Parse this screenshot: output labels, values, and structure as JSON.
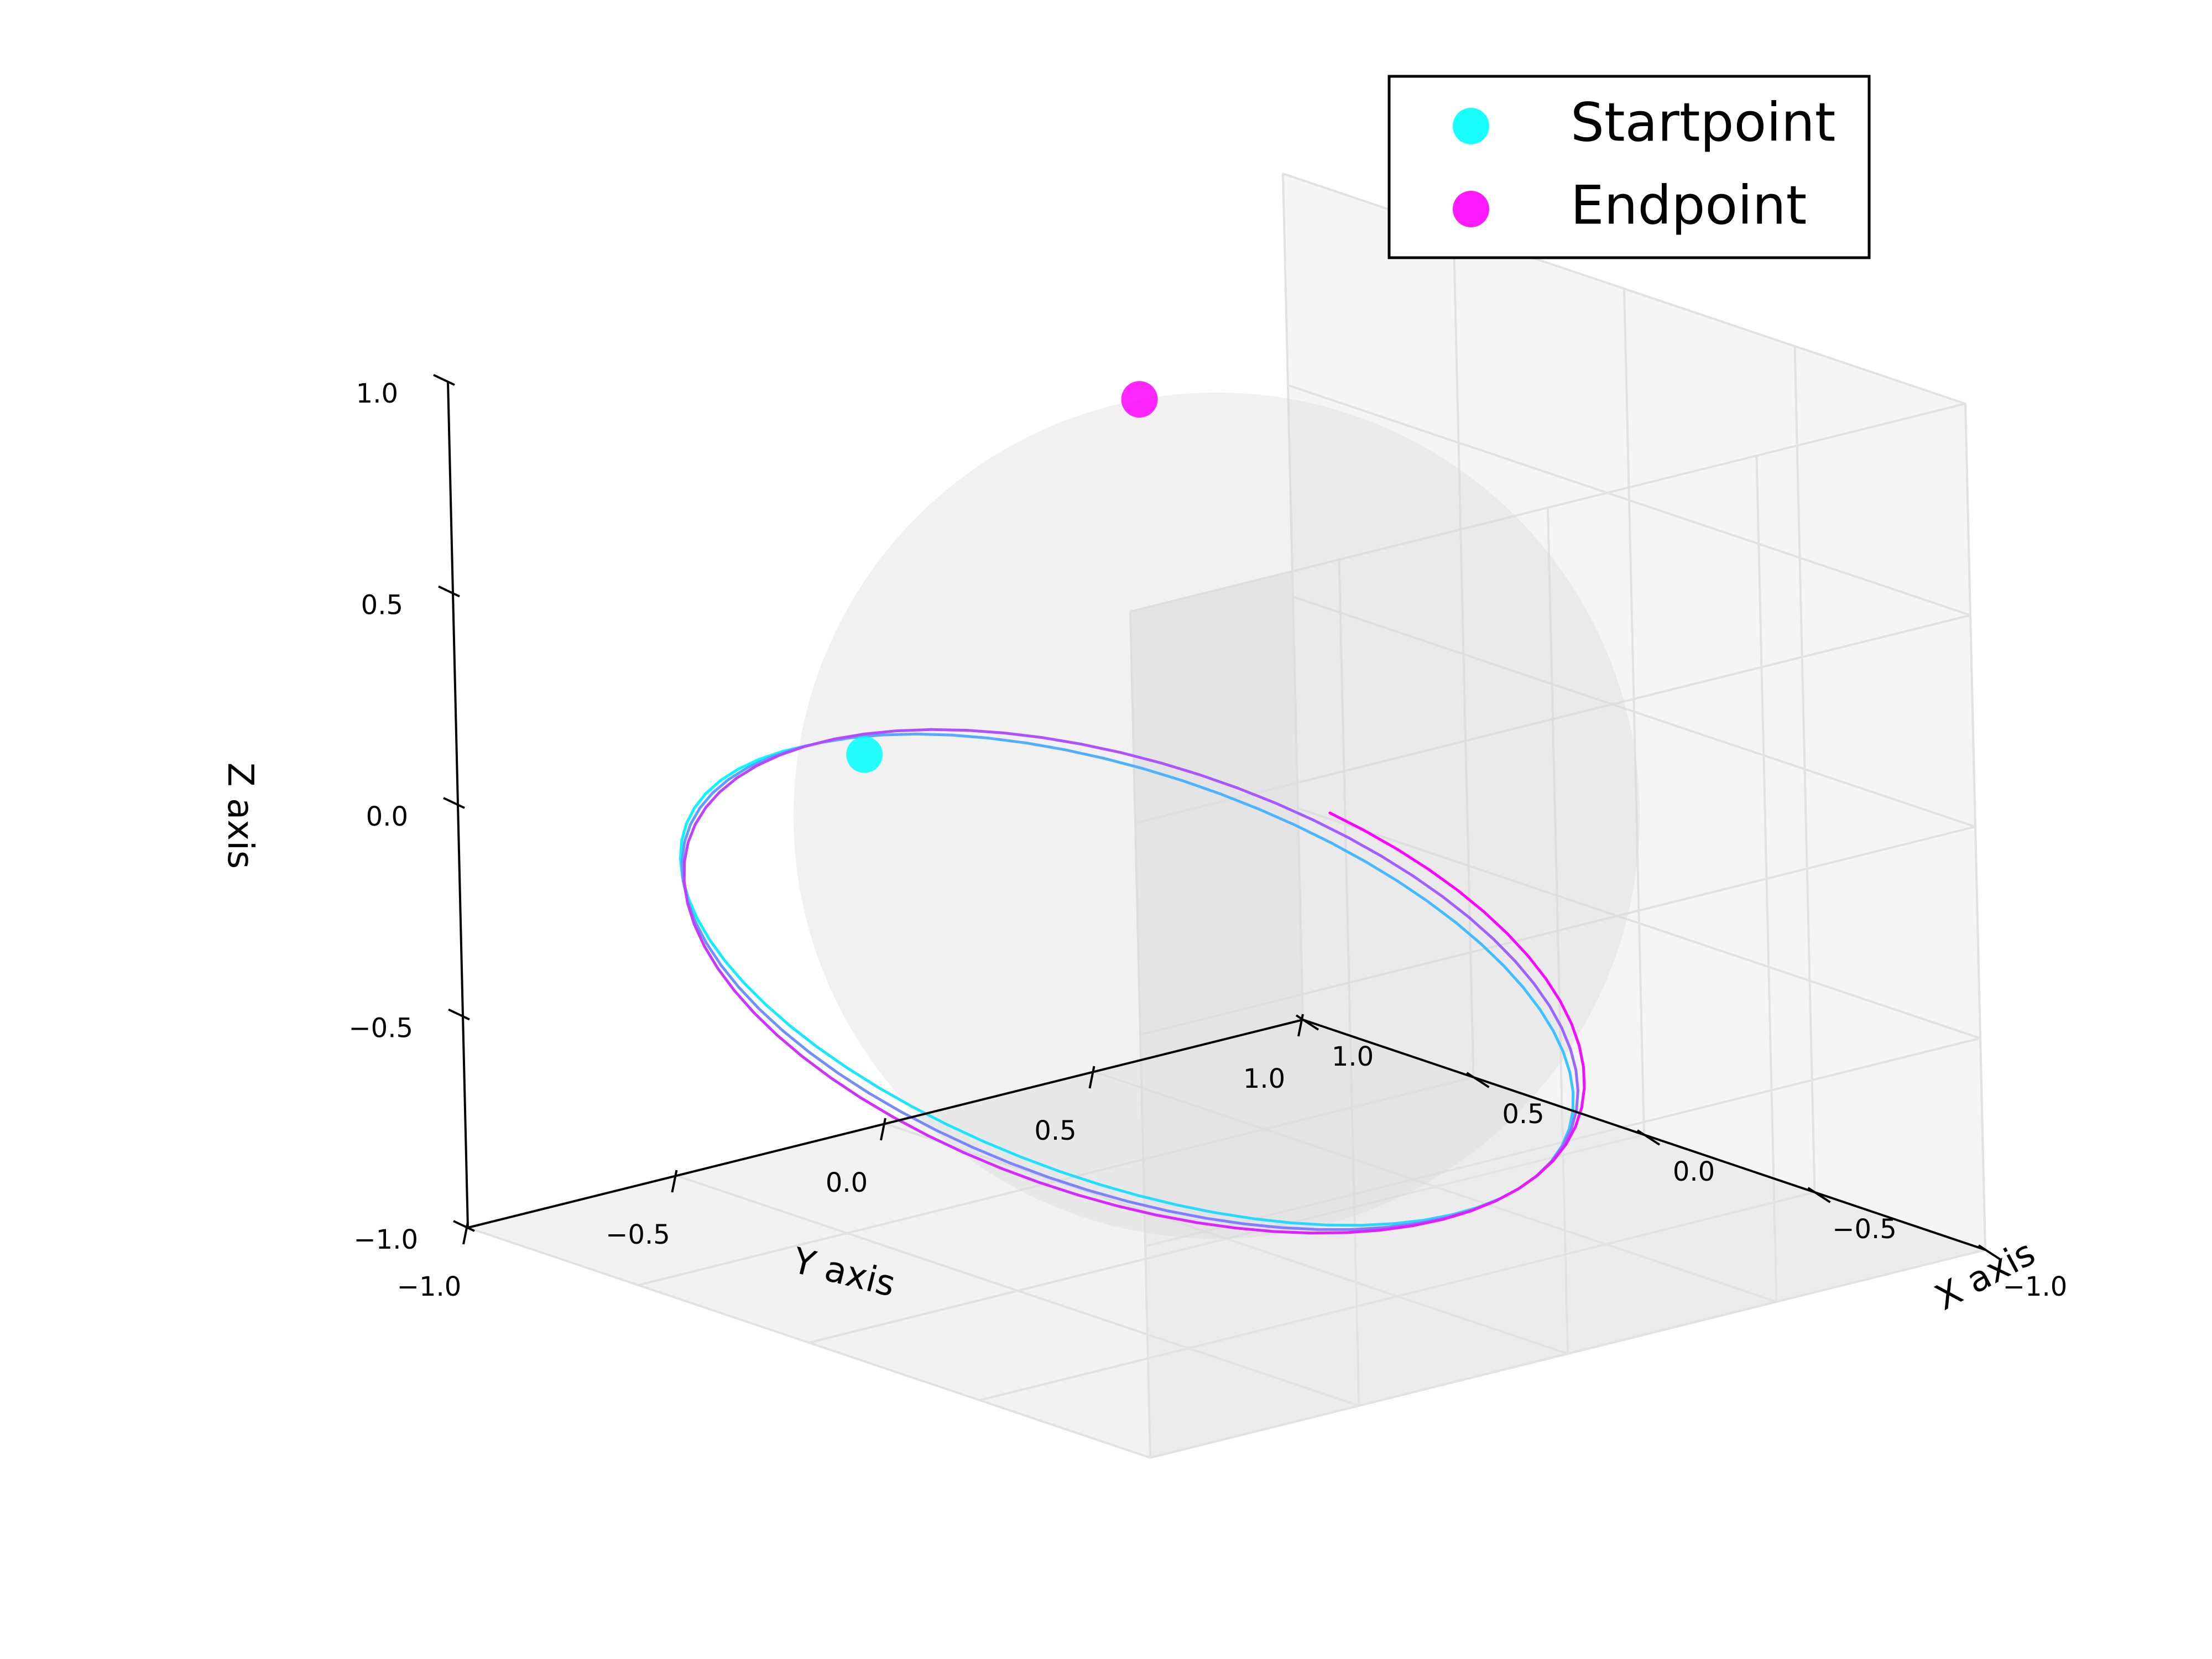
{
  "chart_data": {
    "type": "line",
    "projection": "3d",
    "title": "",
    "xlabel": "X axis",
    "ylabel": "Y axis",
    "zlabel": "Z axis",
    "xlim": [
      -1.0,
      1.0
    ],
    "ylim": [
      -1.0,
      1.0
    ],
    "zlim": [
      -1.0,
      1.0
    ],
    "x_ticks": [
      "−1.0",
      "−0.5",
      "0.0",
      "0.5",
      "1.0"
    ],
    "y_ticks": [
      "−1.0",
      "−0.5",
      "0.0",
      "0.5",
      "1.0"
    ],
    "z_ticks": [
      "−1.0",
      "−0.5",
      "0.0",
      "0.5",
      "1.0"
    ],
    "grid": true,
    "reference_surface": "unit sphere (translucent grey)",
    "trajectory": {
      "description": "precessing path on the unit sphere, colour graded cyan → magenta",
      "color_start": "#00ffff",
      "color_end": "#ff00ff",
      "turns": 2.8,
      "start": [
        0.85,
        -0.15,
        -0.05
      ],
      "end": [
        0.05,
        -0.12,
        1.0
      ]
    },
    "points": [
      {
        "name": "Startpoint",
        "x": 0.85,
        "y": -0.15,
        "z": -0.05,
        "color": "#00ffff"
      },
      {
        "name": "Endpoint",
        "x": 0.05,
        "y": -0.12,
        "z": 1.0,
        "color": "#ff00ff"
      }
    ],
    "legend": {
      "position": "top-right",
      "items": [
        {
          "label": "Startpoint",
          "color": "#00ffff"
        },
        {
          "label": "Endpoint",
          "color": "#ff00ff"
        }
      ]
    }
  }
}
